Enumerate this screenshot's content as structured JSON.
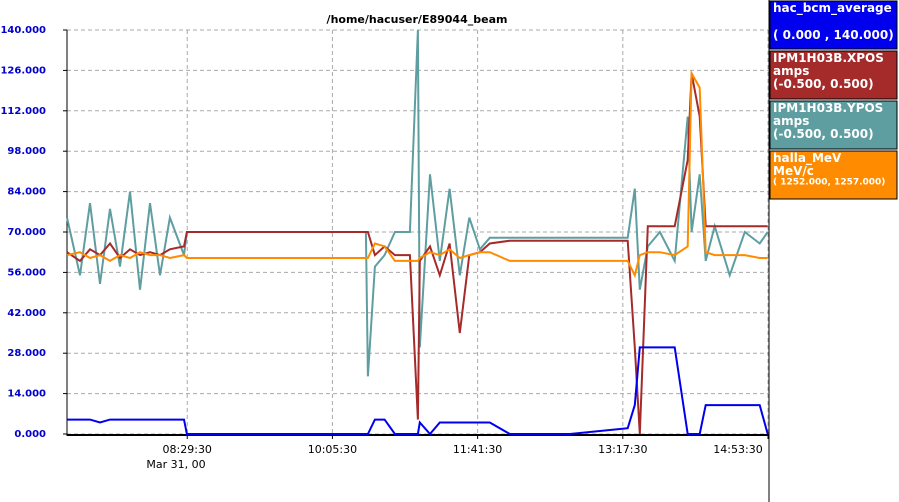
{
  "chart_data": {
    "type": "line",
    "title": "/home/hacuser/E89044_beam",
    "x_sublabel": "Mar 31, 00",
    "x": [
      "07:10:00",
      "07:18:35",
      "07:25:12",
      "07:31:49",
      "07:38:25",
      "07:45:02",
      "07:51:38",
      "07:58:15",
      "08:04:51",
      "08:11:28",
      "08:18:04",
      "08:27:20",
      "08:29:18",
      "09:44:00",
      "10:27:37",
      "10:28:56",
      "10:33:33",
      "10:40:00",
      "10:46:47",
      "10:56:43",
      "11:02:00",
      "11:03:18",
      "11:10:00",
      "11:16:31",
      "11:23:00",
      "11:29:44",
      "11:36:00",
      "11:43:00",
      "11:49:34",
      "12:02:48",
      "12:42:30",
      "13:20:46",
      "13:25:24",
      "13:28:43",
      "13:34:00",
      "13:42:00",
      "13:51:50",
      "14:00:25",
      "14:03:00",
      "14:08:22",
      "14:12:20",
      "14:18:16",
      "14:28:11",
      "14:38:08",
      "14:48:00",
      "14:53:18"
    ],
    "series": [
      {
        "name": "hac_bcm_average",
        "range": "( 0.000  ,  140.000)",
        "color": "#0000ee",
        "values": [
          5,
          5,
          5,
          4,
          5,
          5,
          5,
          5,
          5,
          5,
          5,
          5,
          0,
          0,
          0,
          0,
          5,
          5,
          0,
          0,
          0,
          4,
          0,
          4,
          4,
          4,
          4,
          4,
          4,
          0,
          0,
          2,
          10,
          30,
          30,
          30,
          30,
          0,
          0,
          0,
          10,
          10,
          10,
          10,
          10,
          0
        ]
      },
      {
        "name": "IPM1H03B.XPOS",
        "unit": "amps",
        "range": "(-0.500,  0.500)",
        "color": "#a52a2a",
        "values": [
          63,
          60,
          64,
          62,
          66,
          61,
          64,
          62,
          63,
          62,
          64,
          65,
          70,
          70,
          70,
          70,
          62,
          65,
          62,
          62,
          5,
          60,
          65,
          55,
          66,
          35,
          62,
          63,
          66,
          67,
          67,
          67,
          30,
          0,
          72,
          72,
          72,
          95,
          125,
          110,
          72,
          72,
          72,
          72,
          72,
          72
        ]
      },
      {
        "name": "IPM1H03B.YPOS",
        "unit": "amps",
        "range": "(-0.500,  0.500)",
        "color": "#5f9ea0",
        "values": [
          75,
          55,
          80,
          52,
          78,
          58,
          84,
          50,
          80,
          55,
          75,
          62,
          70,
          70,
          70,
          20,
          58,
          62,
          70,
          70,
          140,
          30,
          90,
          60,
          85,
          55,
          75,
          64,
          68,
          68,
          68,
          68,
          85,
          50,
          65,
          70,
          60,
          110,
          70,
          90,
          60,
          72,
          55,
          70,
          66,
          70
        ]
      },
      {
        "name": "halla_MeV",
        "unit": "MeV/c",
        "range": "( 1252.000,  1257.000)",
        "color": "#ff8c00",
        "values": [
          62,
          63,
          61,
          62,
          60,
          62,
          61,
          63,
          62,
          62,
          61,
          62,
          61,
          61,
          61,
          61,
          66,
          65,
          60,
          60,
          60,
          61,
          63,
          62,
          64,
          61,
          62,
          63,
          63,
          60,
          60,
          60,
          55,
          62,
          63,
          63,
          62,
          65,
          125,
          120,
          63,
          62,
          62,
          62,
          61,
          61
        ]
      }
    ],
    "xlim": [
      "07:10:00",
      "14:53:30"
    ],
    "xticks": [
      "08:29:30",
      "10:05:30",
      "11:41:30",
      "13:17:30",
      "14:53:30"
    ],
    "ylim": [
      0,
      140
    ],
    "yticks": [
      {
        "value": 0,
        "label": "0.000"
      },
      {
        "value": 14,
        "label": "14.000"
      },
      {
        "value": 28,
        "label": "28.000"
      },
      {
        "value": 42,
        "label": "42.000"
      },
      {
        "value": 56,
        "label": "56.000"
      },
      {
        "value": 70,
        "label": "70.000"
      },
      {
        "value": 84,
        "label": "84.000"
      },
      {
        "value": 98,
        "label": "98.000"
      },
      {
        "value": 112,
        "label": "112.000"
      },
      {
        "value": 126,
        "label": "126.000"
      },
      {
        "value": 140,
        "label": "140.000"
      }
    ],
    "grid": true
  }
}
